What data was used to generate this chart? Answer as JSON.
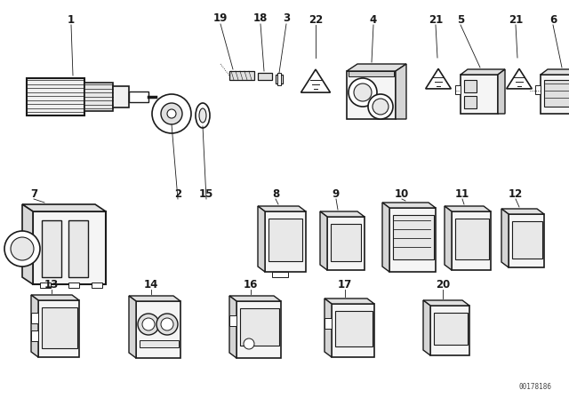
{
  "bg_color": "#ffffff",
  "part_number": "00178186",
  "line_color": "#1a1a1a",
  "label_fontsize": 8.5,
  "label_fontweight": "bold",
  "figsize": [
    6.4,
    4.48
  ],
  "dpi": 100
}
